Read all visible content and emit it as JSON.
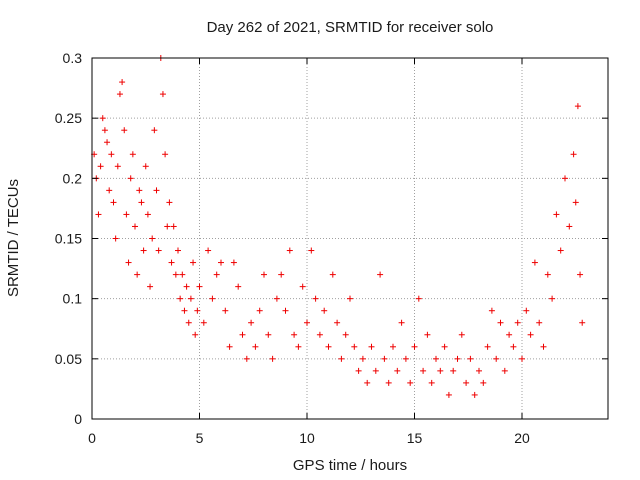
{
  "chart_data": {
    "type": "scatter",
    "title": "Day 262 of 2021, SRMTID for receiver solo",
    "xlabel": "GPS time / hours",
    "ylabel": "SRMTID / TECUs",
    "xlim": [
      0,
      24
    ],
    "ylim": [
      0,
      0.3
    ],
    "xticks": [
      0,
      5,
      10,
      15,
      20
    ],
    "xtick_labels": [
      "0",
      "5",
      "10",
      "15",
      "20"
    ],
    "yticks": [
      0,
      0.05,
      0.1,
      0.15,
      0.2,
      0.25,
      0.3
    ],
    "ytick_labels": [
      "0",
      "0.05",
      "0.1",
      "0.15",
      "0.2",
      "0.25",
      "0.3"
    ],
    "grid": true,
    "marker": "plus",
    "color": "#ee0000",
    "series": [
      {
        "name": "SRMTID",
        "points": [
          [
            0.1,
            0.22
          ],
          [
            0.2,
            0.2
          ],
          [
            0.3,
            0.17
          ],
          [
            0.4,
            0.21
          ],
          [
            0.5,
            0.25
          ],
          [
            0.6,
            0.24
          ],
          [
            0.7,
            0.23
          ],
          [
            0.8,
            0.19
          ],
          [
            0.9,
            0.22
          ],
          [
            1.0,
            0.18
          ],
          [
            1.1,
            0.15
          ],
          [
            1.2,
            0.21
          ],
          [
            1.3,
            0.27
          ],
          [
            1.4,
            0.28
          ],
          [
            1.5,
            0.24
          ],
          [
            1.6,
            0.17
          ],
          [
            1.7,
            0.13
          ],
          [
            1.8,
            0.2
          ],
          [
            1.9,
            0.22
          ],
          [
            2.0,
            0.16
          ],
          [
            2.1,
            0.12
          ],
          [
            2.2,
            0.19
          ],
          [
            2.3,
            0.18
          ],
          [
            2.4,
            0.14
          ],
          [
            2.5,
            0.21
          ],
          [
            2.6,
            0.17
          ],
          [
            2.7,
            0.11
          ],
          [
            2.8,
            0.15
          ],
          [
            2.9,
            0.24
          ],
          [
            3.0,
            0.19
          ],
          [
            3.1,
            0.14
          ],
          [
            3.2,
            0.3
          ],
          [
            3.3,
            0.27
          ],
          [
            3.4,
            0.22
          ],
          [
            3.5,
            0.16
          ],
          [
            3.6,
            0.18
          ],
          [
            3.7,
            0.13
          ],
          [
            3.8,
            0.16
          ],
          [
            3.9,
            0.12
          ],
          [
            4.0,
            0.14
          ],
          [
            4.1,
            0.1
          ],
          [
            4.2,
            0.12
          ],
          [
            4.3,
            0.09
          ],
          [
            4.4,
            0.11
          ],
          [
            4.5,
            0.08
          ],
          [
            4.6,
            0.1
          ],
          [
            4.7,
            0.13
          ],
          [
            4.8,
            0.07
          ],
          [
            4.9,
            0.09
          ],
          [
            5.0,
            0.11
          ],
          [
            5.2,
            0.08
          ],
          [
            5.4,
            0.14
          ],
          [
            5.6,
            0.1
          ],
          [
            5.8,
            0.12
          ],
          [
            6.0,
            0.13
          ],
          [
            6.2,
            0.09
          ],
          [
            6.4,
            0.06
          ],
          [
            6.6,
            0.13
          ],
          [
            6.8,
            0.11
          ],
          [
            7.0,
            0.07
          ],
          [
            7.2,
            0.05
          ],
          [
            7.4,
            0.08
          ],
          [
            7.6,
            0.06
          ],
          [
            7.8,
            0.09
          ],
          [
            8.0,
            0.12
          ],
          [
            8.2,
            0.07
          ],
          [
            8.4,
            0.05
          ],
          [
            8.6,
            0.1
          ],
          [
            8.8,
            0.12
          ],
          [
            9.0,
            0.09
          ],
          [
            9.2,
            0.14
          ],
          [
            9.4,
            0.07
          ],
          [
            9.6,
            0.06
          ],
          [
            9.8,
            0.11
          ],
          [
            10.0,
            0.08
          ],
          [
            10.2,
            0.14
          ],
          [
            10.4,
            0.1
          ],
          [
            10.6,
            0.07
          ],
          [
            10.8,
            0.09
          ],
          [
            11.0,
            0.06
          ],
          [
            11.2,
            0.12
          ],
          [
            11.4,
            0.08
          ],
          [
            11.6,
            0.05
          ],
          [
            11.8,
            0.07
          ],
          [
            12.0,
            0.1
          ],
          [
            12.2,
            0.06
          ],
          [
            12.4,
            0.04
          ],
          [
            12.6,
            0.05
          ],
          [
            12.8,
            0.03
          ],
          [
            13.0,
            0.06
          ],
          [
            13.2,
            0.04
          ],
          [
            13.4,
            0.12
          ],
          [
            13.6,
            0.05
          ],
          [
            13.8,
            0.03
          ],
          [
            14.0,
            0.06
          ],
          [
            14.2,
            0.04
          ],
          [
            14.4,
            0.08
          ],
          [
            14.6,
            0.05
          ],
          [
            14.8,
            0.03
          ],
          [
            15.0,
            0.06
          ],
          [
            15.2,
            0.1
          ],
          [
            15.4,
            0.04
          ],
          [
            15.6,
            0.07
          ],
          [
            15.8,
            0.03
          ],
          [
            16.0,
            0.05
          ],
          [
            16.2,
            0.04
          ],
          [
            16.4,
            0.06
          ],
          [
            16.6,
            0.02
          ],
          [
            16.8,
            0.04
          ],
          [
            17.0,
            0.05
          ],
          [
            17.2,
            0.07
          ],
          [
            17.4,
            0.03
          ],
          [
            17.6,
            0.05
          ],
          [
            17.8,
            0.02
          ],
          [
            18.0,
            0.04
          ],
          [
            18.2,
            0.03
          ],
          [
            18.4,
            0.06
          ],
          [
            18.6,
            0.09
          ],
          [
            18.8,
            0.05
          ],
          [
            19.0,
            0.08
          ],
          [
            19.2,
            0.04
          ],
          [
            19.4,
            0.07
          ],
          [
            19.6,
            0.06
          ],
          [
            19.8,
            0.08
          ],
          [
            20.0,
            0.05
          ],
          [
            20.2,
            0.09
          ],
          [
            20.4,
            0.07
          ],
          [
            20.6,
            0.13
          ],
          [
            20.8,
            0.08
          ],
          [
            21.0,
            0.06
          ],
          [
            21.2,
            0.12
          ],
          [
            21.4,
            0.1
          ],
          [
            21.6,
            0.17
          ],
          [
            21.8,
            0.14
          ],
          [
            22.0,
            0.2
          ],
          [
            22.2,
            0.16
          ],
          [
            22.4,
            0.22
          ],
          [
            22.5,
            0.18
          ],
          [
            22.6,
            0.26
          ],
          [
            22.7,
            0.12
          ],
          [
            22.8,
            0.08
          ]
        ]
      }
    ]
  }
}
